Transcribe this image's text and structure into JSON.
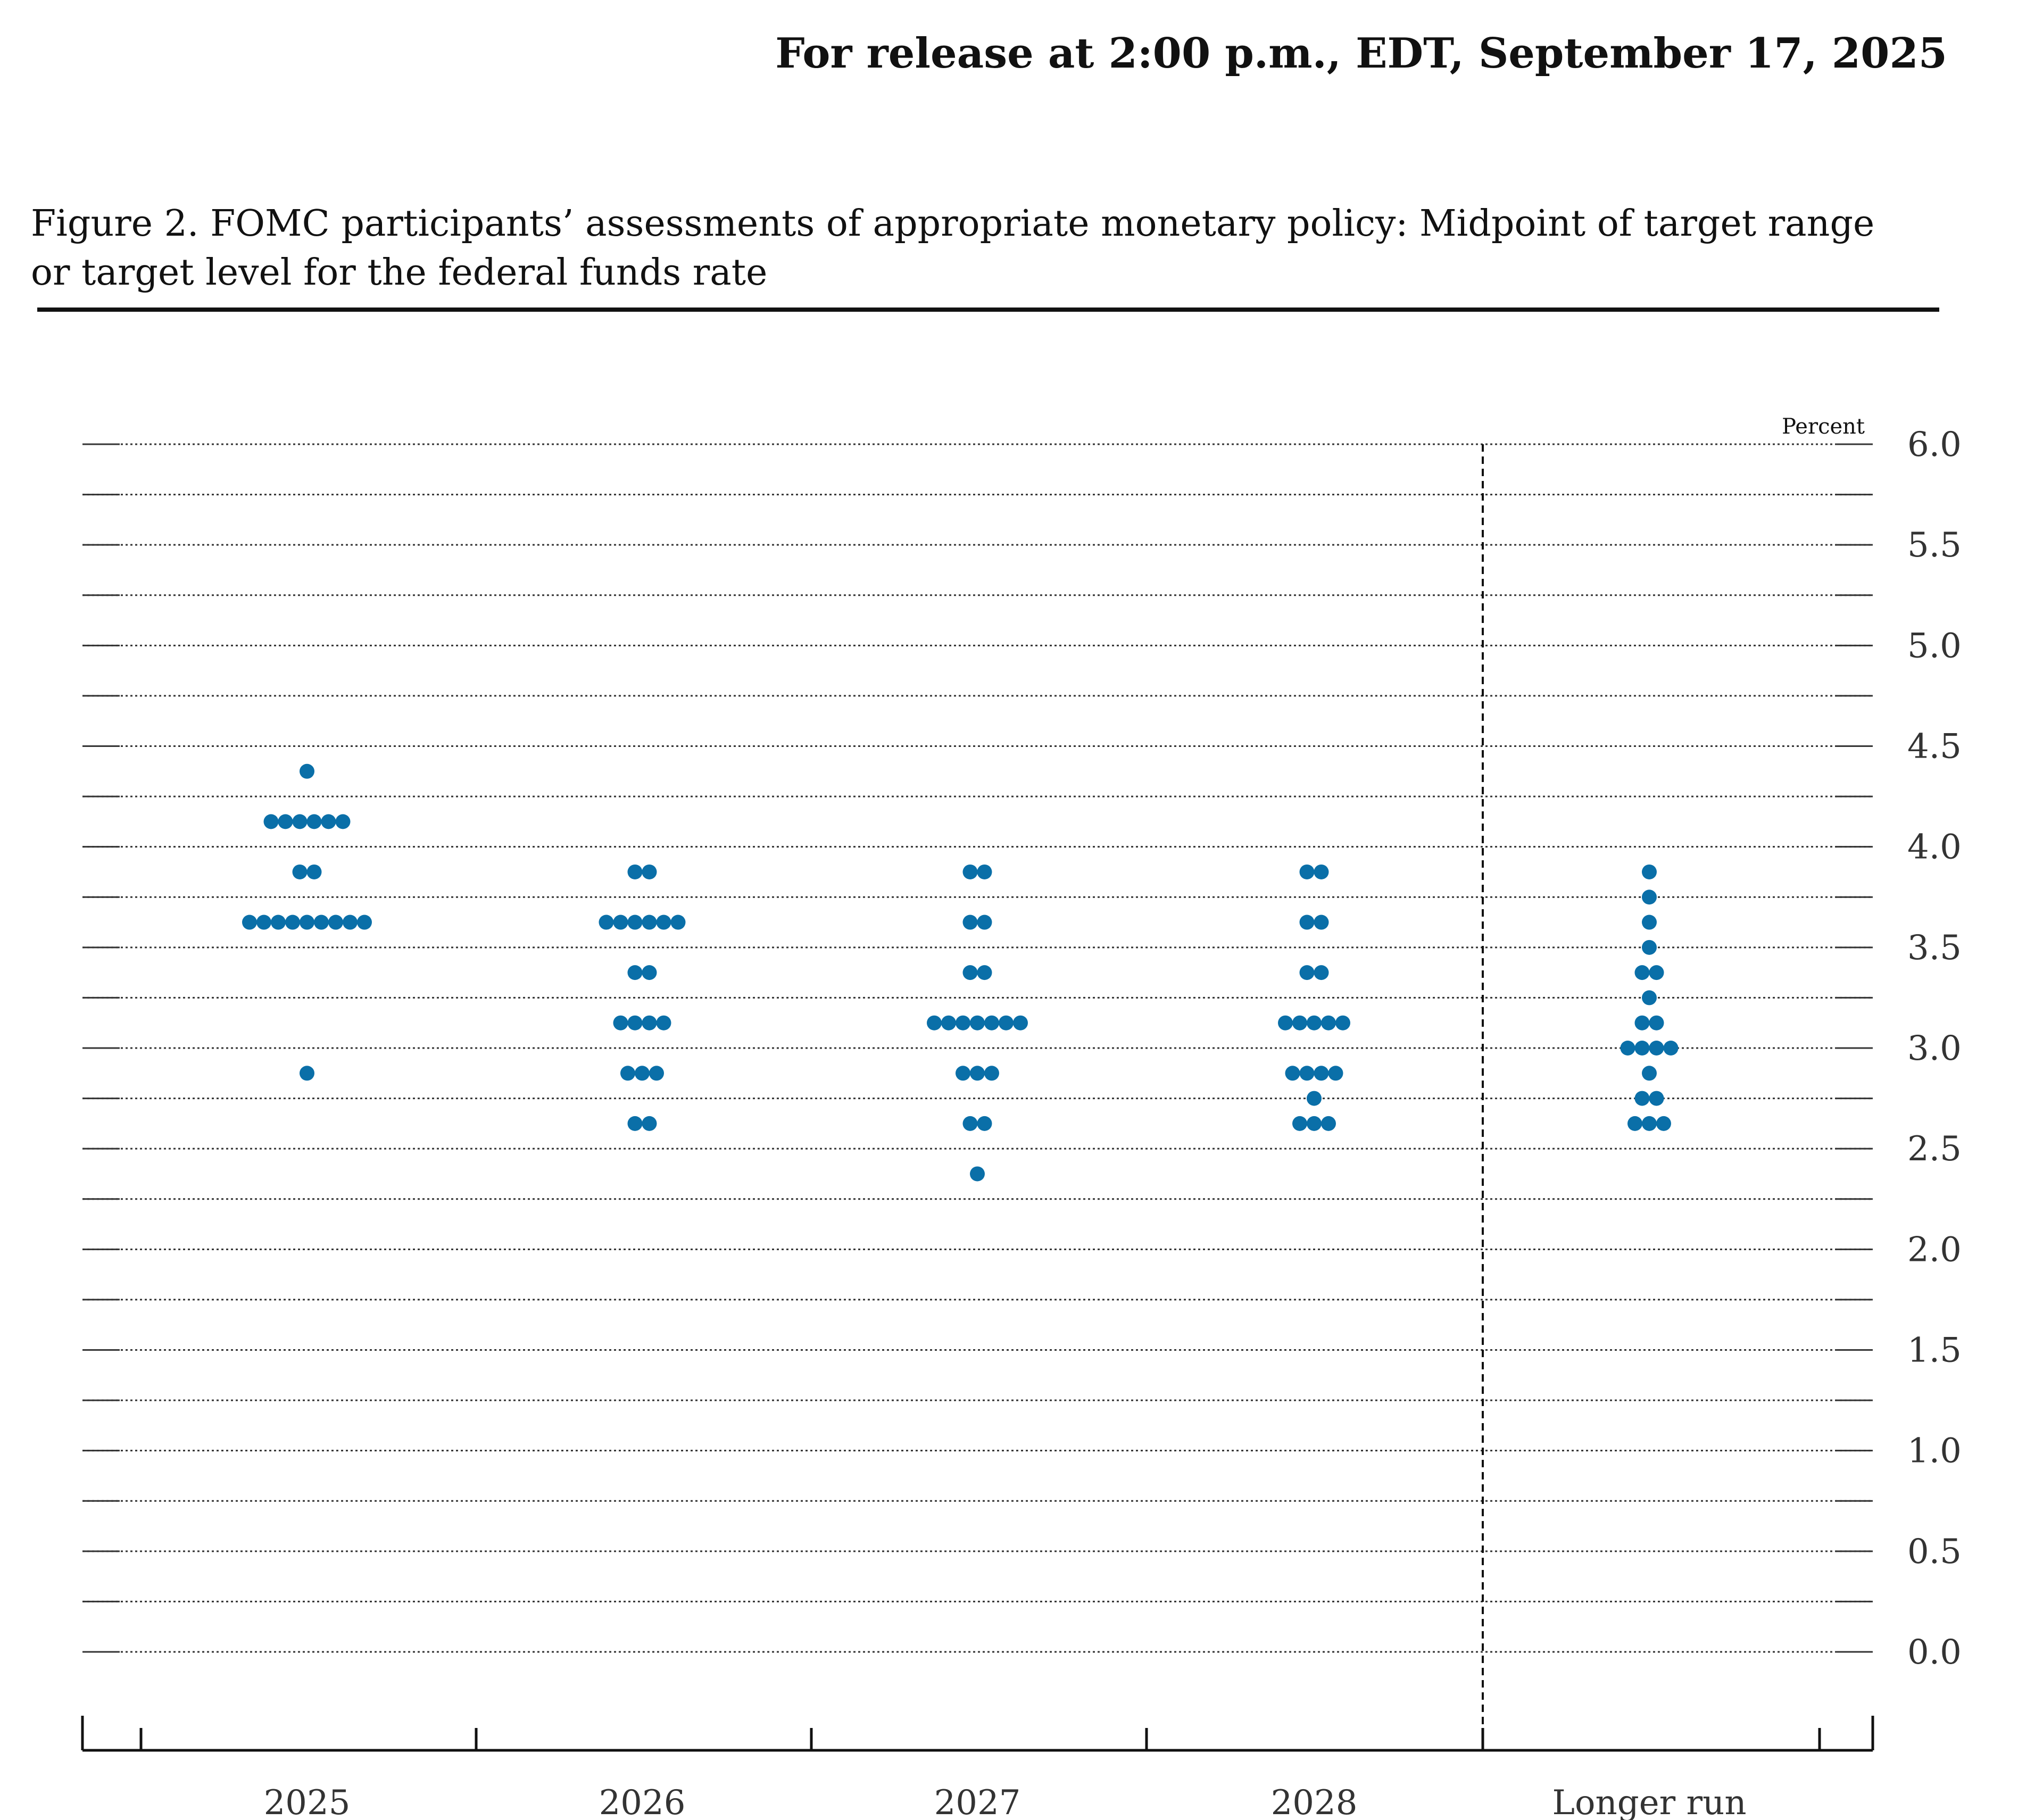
{
  "release_note": "For release at 2:00 p.m., EDT, September 17, 2025",
  "figure_title": "Figure 2. FOMC participants’ assessments of appropriate monetary policy: Midpoint of target range or target level for the federal funds rate",
  "colors": {
    "dot": "#0a6fa8",
    "grid": "#333333",
    "axis": "#111111"
  },
  "chart_data": {
    "type": "scatter",
    "subtype": "dot-plot",
    "title": "",
    "xlabel": "",
    "ylabel": "",
    "unit_label": "Percent",
    "ylim": [
      0,
      6
    ],
    "y_ticks": [
      "0.0",
      "0.5",
      "1.0",
      "1.5",
      "2.0",
      "2.5",
      "3.0",
      "3.5",
      "4.0",
      "4.5",
      "5.0",
      "5.5",
      "6.0"
    ],
    "grid": true,
    "categories": [
      "2025",
      "2026",
      "2027",
      "2028",
      "Longer run"
    ],
    "points": [
      {
        "category": "2025",
        "y": 4.375,
        "count": 1
      },
      {
        "category": "2025",
        "y": 4.125,
        "count": 6
      },
      {
        "category": "2025",
        "y": 3.875,
        "count": 2
      },
      {
        "category": "2025",
        "y": 3.625,
        "count": 9
      },
      {
        "category": "2025",
        "y": 2.875,
        "count": 1
      },
      {
        "category": "2026",
        "y": 3.875,
        "count": 2
      },
      {
        "category": "2026",
        "y": 3.625,
        "count": 6
      },
      {
        "category": "2026",
        "y": 3.375,
        "count": 2
      },
      {
        "category": "2026",
        "y": 3.125,
        "count": 4
      },
      {
        "category": "2026",
        "y": 2.875,
        "count": 3
      },
      {
        "category": "2026",
        "y": 2.625,
        "count": 2
      },
      {
        "category": "2027",
        "y": 3.875,
        "count": 2
      },
      {
        "category": "2027",
        "y": 3.625,
        "count": 2
      },
      {
        "category": "2027",
        "y": 3.375,
        "count": 2
      },
      {
        "category": "2027",
        "y": 3.125,
        "count": 7
      },
      {
        "category": "2027",
        "y": 2.875,
        "count": 3
      },
      {
        "category": "2027",
        "y": 2.625,
        "count": 2
      },
      {
        "category": "2027",
        "y": 2.375,
        "count": 1
      },
      {
        "category": "2028",
        "y": 3.875,
        "count": 2
      },
      {
        "category": "2028",
        "y": 3.625,
        "count": 2
      },
      {
        "category": "2028",
        "y": 3.375,
        "count": 2
      },
      {
        "category": "2028",
        "y": 3.125,
        "count": 5
      },
      {
        "category": "2028",
        "y": 2.875,
        "count": 4
      },
      {
        "category": "2028",
        "y": 2.75,
        "count": 1
      },
      {
        "category": "2028",
        "y": 2.625,
        "count": 3
      },
      {
        "category": "Longer run",
        "y": 3.875,
        "count": 1
      },
      {
        "category": "Longer run",
        "y": 3.75,
        "count": 1
      },
      {
        "category": "Longer run",
        "y": 3.625,
        "count": 1
      },
      {
        "category": "Longer run",
        "y": 3.5,
        "count": 1
      },
      {
        "category": "Longer run",
        "y": 3.375,
        "count": 2
      },
      {
        "category": "Longer run",
        "y": 3.25,
        "count": 1
      },
      {
        "category": "Longer run",
        "y": 3.125,
        "count": 2
      },
      {
        "category": "Longer run",
        "y": 3.0,
        "count": 4
      },
      {
        "category": "Longer run",
        "y": 2.875,
        "count": 1
      },
      {
        "category": "Longer run",
        "y": 2.75,
        "count": 2
      },
      {
        "category": "Longer run",
        "y": 2.625,
        "count": 3
      }
    ]
  }
}
